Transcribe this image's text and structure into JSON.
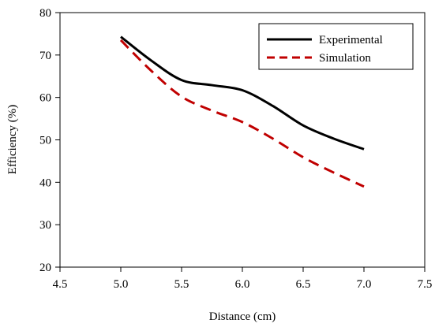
{
  "chart_data": {
    "type": "line",
    "xlabel": "Distance (cm)",
    "ylabel": "Efficiency (%)",
    "xlim": [
      4.5,
      7.5
    ],
    "ylim": [
      20,
      80
    ],
    "xticks": [
      "4.5",
      "5.0",
      "5.5",
      "6.0",
      "6.5",
      "7.0",
      "7.5"
    ],
    "yticks": [
      "20",
      "30",
      "40",
      "50",
      "60",
      "70",
      "80"
    ],
    "grid": false,
    "legend_position": "top-right",
    "series": [
      {
        "name": "Experimental",
        "color": "#000000",
        "style": "solid",
        "x": [
          5.0,
          5.25,
          5.5,
          5.75,
          6.0,
          6.25,
          6.5,
          6.75,
          7.0
        ],
        "y": [
          74.3,
          68.7,
          64.1,
          62.9,
          61.7,
          58.0,
          53.4,
          50.3,
          47.8
        ]
      },
      {
        "name": "Simulation",
        "color": "#c00000",
        "style": "dashed",
        "x": [
          5.0,
          5.25,
          5.5,
          5.75,
          6.0,
          6.25,
          6.5,
          6.75,
          7.0
        ],
        "y": [
          73.5,
          66.3,
          60.2,
          56.9,
          54.2,
          50.3,
          45.9,
          42.3,
          39.0
        ]
      }
    ]
  }
}
